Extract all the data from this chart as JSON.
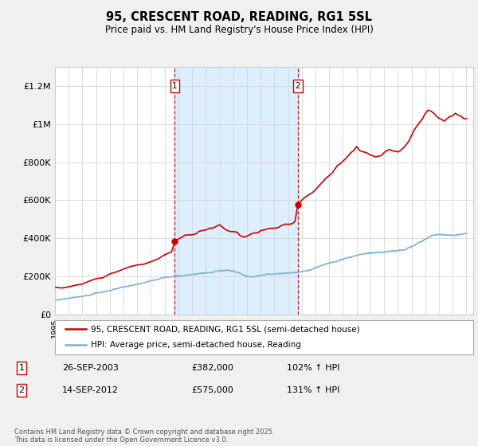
{
  "title": "95, CRESCENT ROAD, READING, RG1 5SL",
  "subtitle": "Price paid vs. HM Land Registry's House Price Index (HPI)",
  "ylim": [
    0,
    1300000
  ],
  "yticks": [
    0,
    200000,
    400000,
    600000,
    800000,
    1000000,
    1200000
  ],
  "ytick_labels": [
    "£0",
    "£200K",
    "£400K",
    "£600K",
    "£800K",
    "£1M",
    "£1.2M"
  ],
  "line1_color": "#cc0000",
  "line2_color": "#7ab0d4",
  "shaded_color": "#ddeeff",
  "vline_color": "#cc0000",
  "marker1_date": 2003.74,
  "marker1_price": 382000,
  "marker2_date": 2012.71,
  "marker2_price": 575000,
  "footnote": "Contains HM Land Registry data © Crown copyright and database right 2025.\nThis data is licensed under the Open Government Licence v3.0.",
  "legend1": "95, CRESCENT ROAD, READING, RG1 5SL (semi-detached house)",
  "legend2": "HPI: Average price, semi-detached house, Reading",
  "annotation1_label": "1",
  "annotation1_date": "26-SEP-2003",
  "annotation1_price": "£382,000",
  "annotation1_hpi": "102% ↑ HPI",
  "annotation2_label": "2",
  "annotation2_date": "14-SEP-2012",
  "annotation2_price": "£575,000",
  "annotation2_hpi": "131% ↑ HPI",
  "background_color": "#f0f0f0",
  "plot_bg_color": "#ffffff"
}
